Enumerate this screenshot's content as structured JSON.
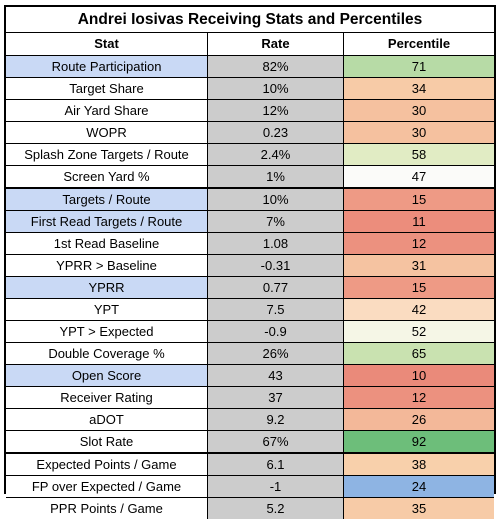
{
  "title": "Andrei Iosivas Receiving Stats and Percentiles",
  "headers": {
    "stat": "Stat",
    "rate": "Rate",
    "percentile": "Percentile"
  },
  "rows": [
    {
      "stat": "Route Participation",
      "rate": "82%",
      "percentile": "71",
      "stat_bg": "#c9d9f5",
      "pct_bg": "#b7dba6"
    },
    {
      "stat": "Target Share",
      "rate": "10%",
      "percentile": "34",
      "stat_bg": "#ffffff",
      "pct_bg": "#f7cba7"
    },
    {
      "stat": "Air Yard Share",
      "rate": "12%",
      "percentile": "30",
      "stat_bg": "#ffffff",
      "pct_bg": "#f5c19f"
    },
    {
      "stat": "WOPR",
      "rate": "0.23",
      "percentile": "30",
      "stat_bg": "#ffffff",
      "pct_bg": "#f5c19f"
    },
    {
      "stat": "Splash Zone Targets / Route",
      "rate": "2.4%",
      "percentile": "58",
      "stat_bg": "#ffffff",
      "pct_bg": "#e1ecc4"
    },
    {
      "stat": "Screen Yard %",
      "rate": "1%",
      "percentile": "47",
      "stat_bg": "#ffffff",
      "pct_bg": "#fbfbf9"
    },
    {
      "stat": "Targets / Route",
      "rate": "10%",
      "percentile": "15",
      "stat_bg": "#c9d9f5",
      "pct_bg": "#ee9a85"
    },
    {
      "stat": "First Read Targets / Route",
      "rate": "7%",
      "percentile": "11",
      "stat_bg": "#c9d9f5",
      "pct_bg": "#ec8d7c"
    },
    {
      "stat": "1st Read Baseline",
      "rate": "1.08",
      "percentile": "12",
      "stat_bg": "#ffffff",
      "pct_bg": "#ec917f"
    },
    {
      "stat": "YPRR > Baseline",
      "rate": "-0.31",
      "percentile": "31",
      "stat_bg": "#ffffff",
      "pct_bg": "#f5c3a1"
    },
    {
      "stat": "YPRR",
      "rate": "0.77",
      "percentile": "15",
      "stat_bg": "#c9d9f5",
      "pct_bg": "#ee9a85"
    },
    {
      "stat": "YPT",
      "rate": "7.5",
      "percentile": "42",
      "stat_bg": "#ffffff",
      "pct_bg": "#fadcc1"
    },
    {
      "stat": "YPT > Expected",
      "rate": "-0.9",
      "percentile": "52",
      "stat_bg": "#ffffff",
      "pct_bg": "#f5f6e6"
    },
    {
      "stat": "Double Coverage %",
      "rate": "26%",
      "percentile": "65",
      "stat_bg": "#ffffff",
      "pct_bg": "#c9e2b0"
    },
    {
      "stat": "Open Score",
      "rate": "43",
      "percentile": "10",
      "stat_bg": "#c9d9f5",
      "pct_bg": "#ea8a7a"
    },
    {
      "stat": "Receiver Rating",
      "rate": "37",
      "percentile": "12",
      "stat_bg": "#ffffff",
      "pct_bg": "#ec917f"
    },
    {
      "stat": "aDOT",
      "rate": "9.2",
      "percentile": "26",
      "stat_bg": "#ffffff",
      "pct_bg": "#f3b899"
    },
    {
      "stat": "Slot Rate",
      "rate": "67%",
      "percentile": "92",
      "stat_bg": "#ffffff",
      "pct_bg": "#6dbe7a"
    },
    {
      "stat": "Expected Points / Game",
      "rate": "6.1",
      "percentile": "38",
      "stat_bg": "#ffffff",
      "pct_bg": "#f8d0ab"
    },
    {
      "stat": "FP over Expected / Game",
      "rate": "-1",
      "percentile": "24",
      "stat_bg": "#ffffff",
      "pct_bg": "#8eb4e3"
    },
    {
      "stat": "PPR Points / Game",
      "rate": "5.2",
      "percentile": "35",
      "stat_bg": "#ffffff",
      "pct_bg": "#f7cba7"
    }
  ]
}
